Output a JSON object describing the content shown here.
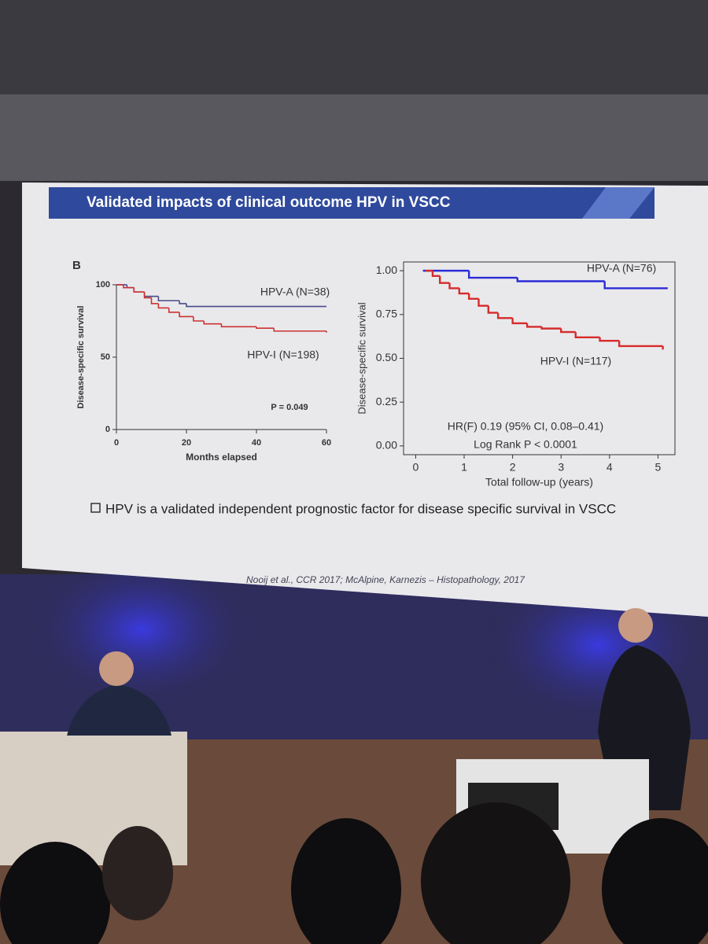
{
  "slide": {
    "title": "Validated impacts of clinical outcome HPV in VSCC",
    "panel_label": "B",
    "bullet": [
      "HPV is a validated independent prognostic factor for disease specific survival in VSCC",
      ""
    ],
    "citation": "Nooij et al., CCR 2017; McAlpine, Karnezis – Histopathology, 2017"
  },
  "chart_data": [
    {
      "type": "step",
      "x_label": "Months elapsed",
      "y_label": "Disease-specific survival",
      "xlim": [
        0,
        60
      ],
      "xticks": [
        0,
        20,
        40,
        60
      ],
      "ylim": [
        0,
        100
      ],
      "yticks": [
        0,
        50,
        100
      ],
      "series": [
        {
          "name": "HPV-A (N=38)",
          "color": "#4a4a8a",
          "x": [
            0,
            3,
            5,
            8,
            12,
            18,
            20,
            60
          ],
          "values": [
            100,
            98,
            95,
            92,
            89,
            87,
            85,
            85
          ]
        },
        {
          "name": "HPV-I (N=198)",
          "color": "#cc3333",
          "x": [
            0,
            2,
            5,
            8,
            10,
            12,
            15,
            18,
            22,
            25,
            30,
            40,
            45,
            60
          ],
          "values": [
            100,
            98,
            95,
            91,
            87,
            84,
            81,
            78,
            75,
            73,
            71,
            70,
            68,
            67
          ]
        }
      ],
      "annotations": [
        "P = 0.049"
      ]
    },
    {
      "type": "step",
      "x_label": "Total follow-up (years)",
      "y_label": "Disease-specific survival",
      "xlim": [
        -0.25,
        5.35
      ],
      "xticks": [
        0,
        1,
        2,
        3,
        4,
        5
      ],
      "ylim": [
        -0.05,
        1.05
      ],
      "yticks": [
        {
          "value": 0,
          "label": "0.00"
        },
        {
          "value": 0.25,
          "label": "0.25"
        },
        {
          "value": 0.5,
          "label": "0.50"
        },
        {
          "value": 0.75,
          "label": "0.75"
        },
        {
          "value": 1,
          "label": "1.00"
        }
      ],
      "series": [
        {
          "name": "HPV-A (N=76)",
          "color": "#2b2bd6",
          "x": [
            0.15,
            1.1,
            2.1,
            3.9,
            5.2
          ],
          "values": [
            1,
            0.96,
            0.94,
            0.9,
            0.9
          ]
        },
        {
          "name": "HPV-I (N=117)",
          "color": "#d62b2b",
          "x": [
            0.2,
            0.35,
            0.5,
            0.7,
            0.9,
            1.1,
            1.3,
            1.5,
            1.7,
            2.0,
            2.3,
            2.6,
            3.0,
            3.3,
            3.8,
            4.2,
            5.1
          ],
          "values": [
            1,
            0.97,
            0.93,
            0.9,
            0.87,
            0.84,
            0.8,
            0.76,
            0.73,
            0.7,
            0.68,
            0.67,
            0.65,
            0.62,
            0.6,
            0.57,
            0.55
          ]
        }
      ],
      "annotations": [
        "HR(F) 0.19 (95% CI, 0.08–0.41)",
        "Log Rank P < 0.0001"
      ]
    }
  ]
}
